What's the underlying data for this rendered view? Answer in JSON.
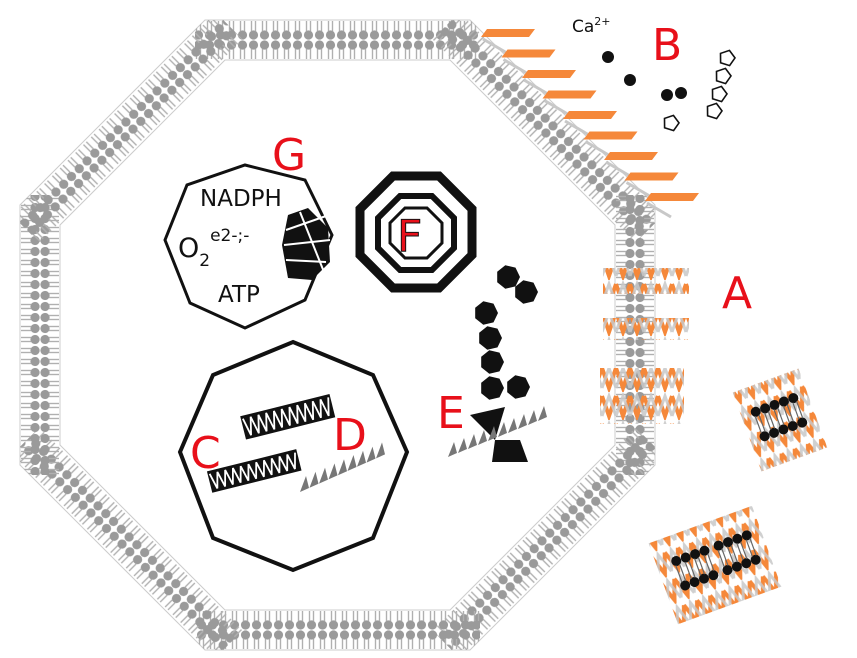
{
  "labels": {
    "a": "A",
    "b": "B",
    "c": "C",
    "d": "D",
    "e": "E",
    "f": "F",
    "g": "G"
  },
  "ion": {
    "base": "Ca",
    "sup": "2+"
  },
  "mito": {
    "nadph": "NADPH",
    "o2_base": "O",
    "o2_sub": "2",
    "o2_sup": "e2-;-",
    "atp": "ATP"
  },
  "colors": {
    "membrane": "#9a9a9a",
    "accent": "#f5883a",
    "label": "#e8101a",
    "ink": "#111111"
  }
}
